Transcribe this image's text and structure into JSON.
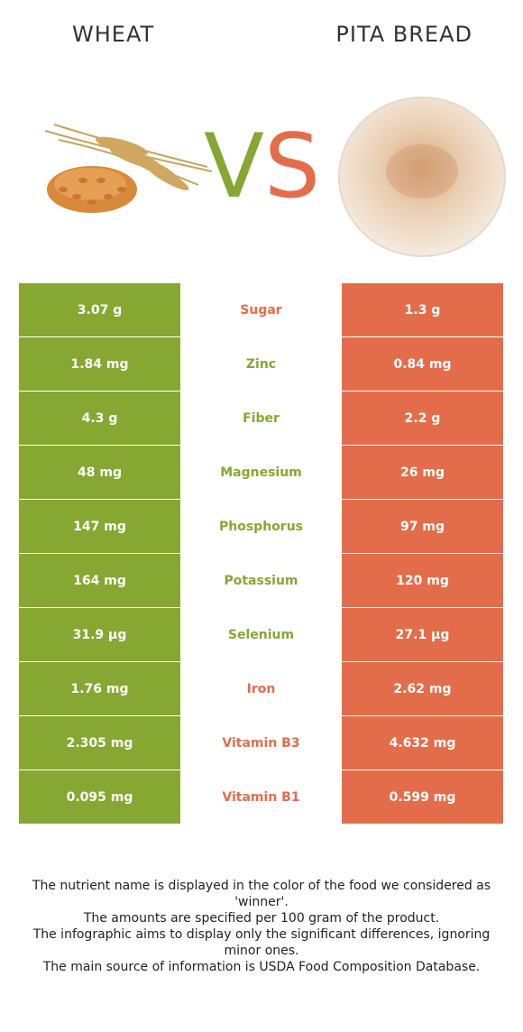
{
  "header": {
    "left_food": "WHEAT",
    "right_food": "PITA BREAD",
    "vs_v": "V",
    "vs_s": "S"
  },
  "colors": {
    "winner_left": "#86a732",
    "winner_right": "#e36d4a"
  },
  "rows": [
    {
      "left": "3.07 g",
      "nutrient": "Sugar",
      "right": "1.3 g",
      "winner": "right"
    },
    {
      "left": "1.84 mg",
      "nutrient": "Zinc",
      "right": "0.84 mg",
      "winner": "left"
    },
    {
      "left": "4.3 g",
      "nutrient": "Fiber",
      "right": "2.2 g",
      "winner": "left"
    },
    {
      "left": "48 mg",
      "nutrient": "Magnesium",
      "right": "26 mg",
      "winner": "left"
    },
    {
      "left": "147 mg",
      "nutrient": "Phosphorus",
      "right": "97 mg",
      "winner": "left"
    },
    {
      "left": "164 mg",
      "nutrient": "Potassium",
      "right": "120 mg",
      "winner": "left"
    },
    {
      "left": "31.9 µg",
      "nutrient": "Selenium",
      "right": "27.1 µg",
      "winner": "left"
    },
    {
      "left": "1.76 mg",
      "nutrient": "Iron",
      "right": "2.62 mg",
      "winner": "right"
    },
    {
      "left": "2.305 mg",
      "nutrient": "Vitamin B3",
      "right": "4.632 mg",
      "winner": "right"
    },
    {
      "left": "0.095 mg",
      "nutrient": "Vitamin B1",
      "right": "0.599 mg",
      "winner": "right"
    }
  ],
  "footer": {
    "line1": "The nutrient name is displayed in the color of the food we considered as 'winner'.",
    "line2": "The amounts are specified per 100 gram of the product.",
    "line3": "The infographic aims to display only the significant differences, ignoring minor ones.",
    "line4": "The main source of information is USDA Food Composition Database."
  }
}
